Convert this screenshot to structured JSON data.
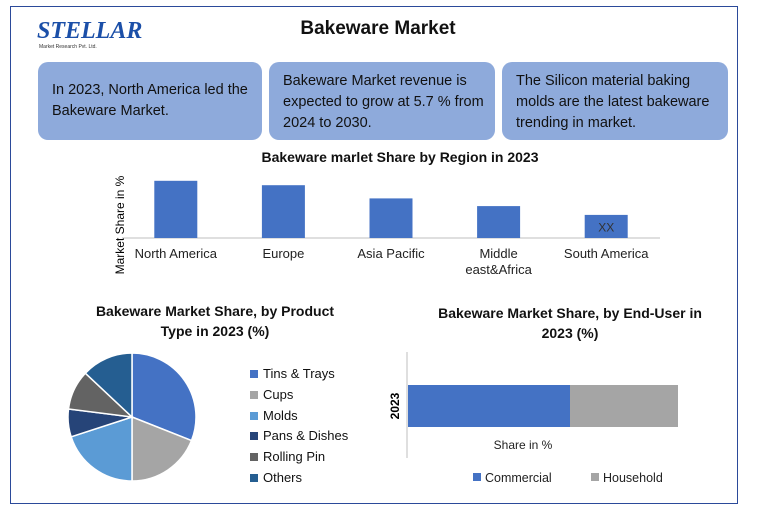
{
  "brand": {
    "name": "STELLAR",
    "tagline": "Market Research Pvt. Ltd."
  },
  "title": "Bakeware Market",
  "highlights": [
    "In 2023, North America led the Bakeware Market.",
    "Bakeware Market revenue is expected to grow at 5.7 % from 2024 to 2030.",
    "The Silicon material baking molds are the latest bakeware trending in market."
  ],
  "colors": {
    "accent": "#4472c4",
    "box": "#8eaadb",
    "frame": "#2b4a9a"
  },
  "chart_data": [
    {
      "type": "bar",
      "title": "Bakeware marlet Share by Region in 2023",
      "ylabel": "Market Share in %",
      "categories": [
        "North America",
        "Europe",
        "Asia Pacific",
        "Middle east&Africa",
        "South America"
      ],
      "category_lines": [
        [
          "North America"
        ],
        [
          "Europe"
        ],
        [
          "Asia Pacific"
        ],
        [
          "Middle",
          "east&Africa"
        ],
        [
          "South America"
        ]
      ],
      "values": [
        52,
        48,
        36,
        29,
        21
      ],
      "ylim": [
        0,
        60
      ],
      "annotations": [
        {
          "category": "South America",
          "text": "XX"
        }
      ],
      "bar_color": "#4472c4"
    },
    {
      "type": "pie",
      "title": "Bakeware Market Share, by Product Type in 2023 (%)",
      "labels": [
        "Tins & Trays",
        "Cups",
        "Molds",
        "Pans & Dishes",
        "Rolling Pin",
        "Others"
      ],
      "values": [
        31,
        19,
        20,
        7,
        10,
        13
      ],
      "colors": [
        "#4472c4",
        "#a5a5a5",
        "#5b9bd5",
        "#264478",
        "#636363",
        "#255e91"
      ],
      "legend": "right"
    },
    {
      "type": "bar",
      "orientation": "horizontal-stacked",
      "title": "Bakeware Market Share, by End-User in 2023 (%)",
      "categories": [
        "2023"
      ],
      "xlabel": "Share in %",
      "series": [
        {
          "name": "Commercial",
          "values": [
            60
          ],
          "color": "#4472c4"
        },
        {
          "name": "Household",
          "values": [
            40
          ],
          "color": "#a5a5a5"
        }
      ],
      "legend": "bottom"
    }
  ]
}
